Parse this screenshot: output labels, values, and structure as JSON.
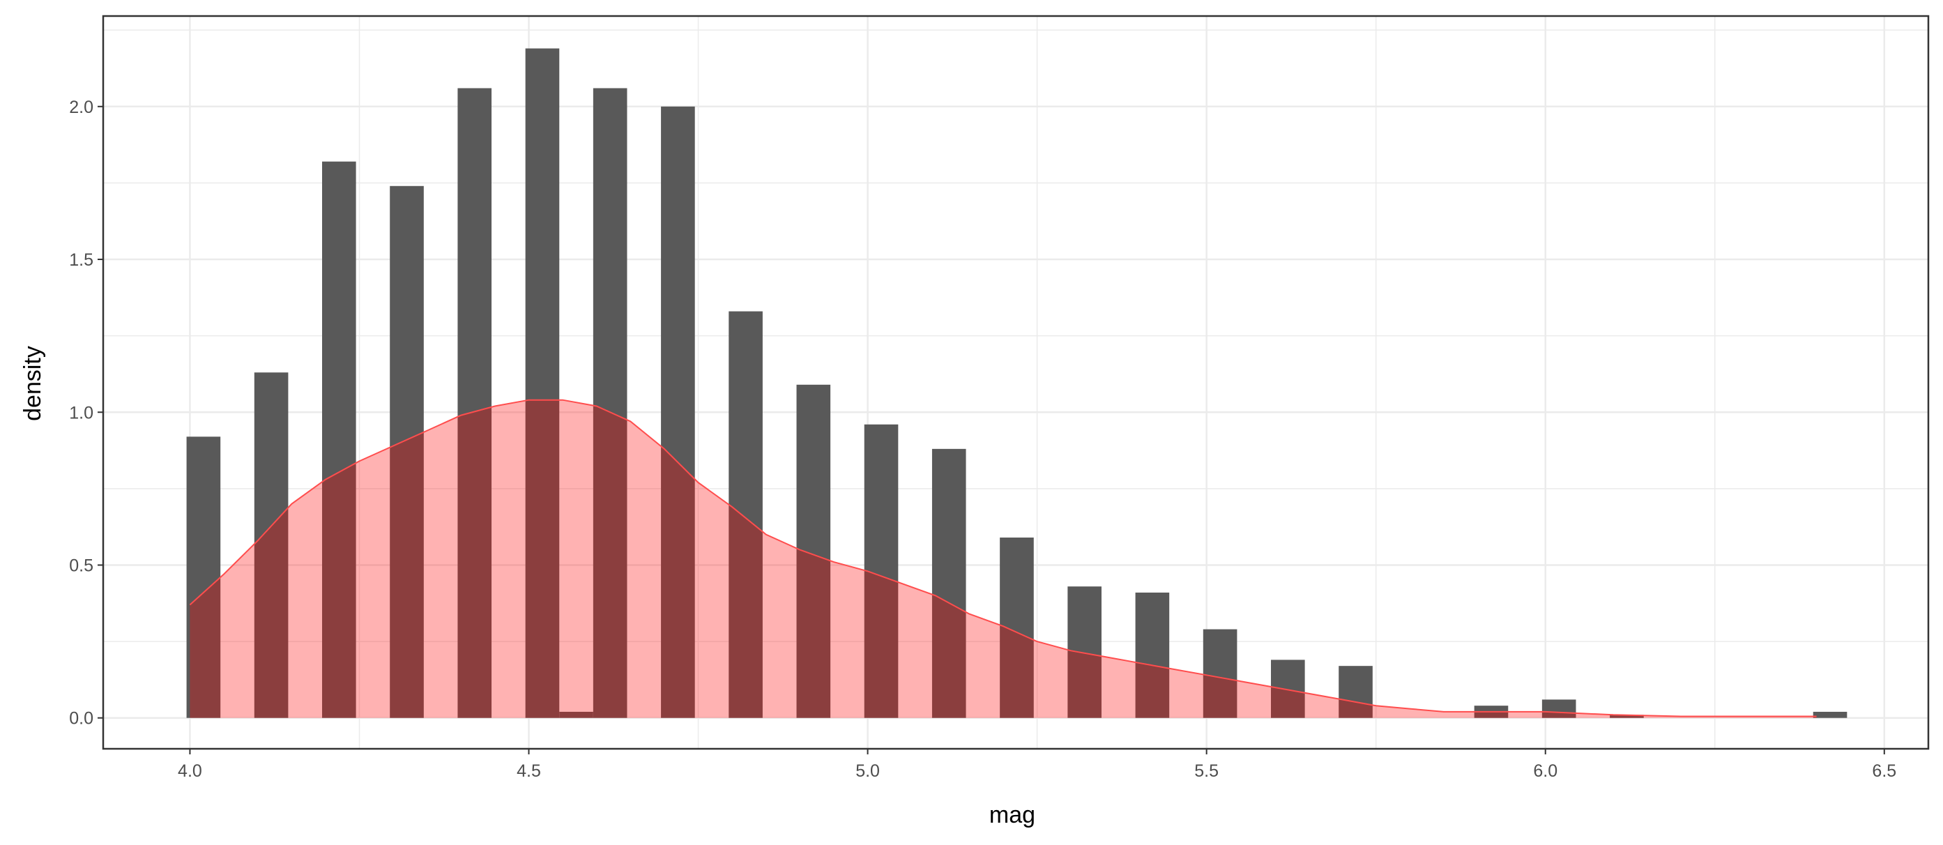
{
  "chart_data": {
    "type": "bar",
    "title": "",
    "xlabel": "mag",
    "ylabel": "density",
    "xlim": [
      3.872,
      6.565
    ],
    "ylim": [
      -0.101,
      2.296
    ],
    "grid": true,
    "x_ticks": [
      "4.0",
      "4.5",
      "5.0",
      "5.5",
      "6.0",
      "6.5"
    ],
    "x_tick_values": [
      4.0,
      4.5,
      5.0,
      5.5,
      6.0,
      6.5
    ],
    "y_ticks": [
      "0.0",
      "0.5",
      "1.0",
      "1.5",
      "2.0"
    ],
    "y_tick_values": [
      0,
      0.5,
      1.0,
      1.5,
      2.0
    ],
    "bin_width": 0.05,
    "histogram": {
      "bin_start": [
        4.0,
        4.1,
        4.2,
        4.3,
        4.4,
        4.5,
        4.55,
        4.6,
        4.7,
        4.8,
        4.9,
        5.0,
        5.1,
        5.2,
        5.3,
        5.4,
        5.5,
        5.6,
        5.7,
        5.9,
        6.0,
        6.1,
        6.4
      ],
      "density": [
        0.92,
        1.13,
        1.82,
        1.74,
        2.06,
        2.19,
        0.02,
        2.06,
        2.0,
        1.33,
        1.09,
        0.96,
        0.88,
        0.59,
        0.43,
        0.41,
        0.29,
        0.19,
        0.17,
        0.04,
        0.06,
        0.01,
        0.02
      ]
    },
    "density_curve": {
      "x": [
        4.0,
        4.05,
        4.1,
        4.15,
        4.2,
        4.25,
        4.3,
        4.35,
        4.4,
        4.45,
        4.5,
        4.55,
        4.6,
        4.65,
        4.7,
        4.75,
        4.8,
        4.85,
        4.9,
        4.95,
        5.0,
        5.05,
        5.1,
        5.15,
        5.2,
        5.25,
        5.3,
        5.35,
        5.4,
        5.45,
        5.5,
        5.55,
        5.6,
        5.65,
        5.7,
        5.75,
        5.8,
        5.85,
        5.9,
        6.0,
        6.1,
        6.2,
        6.3,
        6.4
      ],
      "y": [
        0.37,
        0.47,
        0.58,
        0.7,
        0.78,
        0.84,
        0.89,
        0.94,
        0.99,
        1.02,
        1.04,
        1.04,
        1.02,
        0.97,
        0.88,
        0.77,
        0.69,
        0.6,
        0.55,
        0.51,
        0.48,
        0.44,
        0.4,
        0.34,
        0.3,
        0.25,
        0.22,
        0.2,
        0.18,
        0.16,
        0.14,
        0.12,
        0.1,
        0.08,
        0.06,
        0.04,
        0.03,
        0.02,
        0.02,
        0.02,
        0.01,
        0.005,
        0.005,
        0.005
      ]
    },
    "colors": {
      "bar": "#595959",
      "density_fill": "#ff0000",
      "density_fill_opacity": 0.3,
      "density_line": "#ff4d4d",
      "grid": "#ebebeb",
      "panel_border": "#333333"
    }
  }
}
